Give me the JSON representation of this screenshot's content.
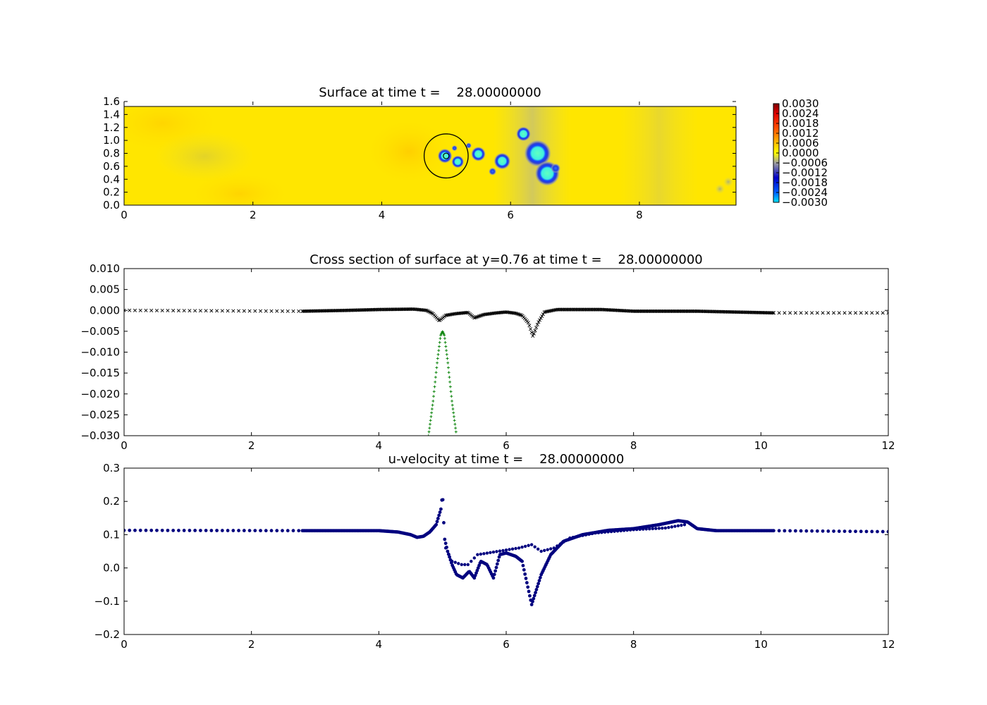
{
  "chart_data": [
    {
      "type": "heatmap",
      "title": "Surface at time t =    28.00000000",
      "xlim": [
        0,
        9.5
      ],
      "ylim": [
        0,
        1.6
      ],
      "xticks": [
        "0",
        "2",
        "4",
        "6",
        "8"
      ],
      "yticks": [
        "0.0",
        "0.2",
        "0.4",
        "0.6",
        "0.8",
        "1.0",
        "1.2",
        "1.4",
        "1.6"
      ],
      "colorbar_ticks": [
        "0.0030",
        "0.0024",
        "0.0018",
        "0.0012",
        "0.0006",
        "0.0000",
        "−0.0006",
        "−0.0012",
        "−0.0018",
        "−0.0024",
        "−0.0030"
      ],
      "colorbar_range": [
        -0.003,
        0.003
      ],
      "background_value": 0.0002,
      "circle": {
        "cx": 5.0,
        "cy": 0.76,
        "r": 0.34
      },
      "features": [
        {
          "x": 4.98,
          "y": 0.76,
          "r": 0.07,
          "v": -0.003
        },
        {
          "x": 5.18,
          "y": 0.67,
          "r": 0.06,
          "v": -0.0022
        },
        {
          "x": 5.13,
          "y": 0.88,
          "r": 0.03,
          "v": -0.0016
        },
        {
          "x": 5.35,
          "y": 0.92,
          "r": 0.03,
          "v": -0.0012
        },
        {
          "x": 5.5,
          "y": 0.79,
          "r": 0.07,
          "v": -0.0022
        },
        {
          "x": 5.72,
          "y": 0.52,
          "r": 0.04,
          "v": -0.0012
        },
        {
          "x": 5.87,
          "y": 0.68,
          "r": 0.08,
          "v": -0.0024
        },
        {
          "x": 6.2,
          "y": 1.1,
          "r": 0.07,
          "v": -0.0022
        },
        {
          "x": 6.42,
          "y": 0.8,
          "r": 0.13,
          "v": -0.0028
        },
        {
          "x": 6.57,
          "y": 0.49,
          "r": 0.12,
          "v": -0.0028
        },
        {
          "x": 6.7,
          "y": 0.57,
          "r": 0.05,
          "v": -0.0012
        },
        {
          "x": 9.25,
          "y": 0.25,
          "r": 0.05,
          "v": -0.0007
        },
        {
          "x": 9.38,
          "y": 0.36,
          "r": 0.05,
          "v": -0.0007
        }
      ]
    },
    {
      "type": "scatter",
      "title": "Cross section of surface at y=0.76 at time t =    28.00000000",
      "xlim": [
        0,
        12
      ],
      "ylim": [
        -0.03,
        0.01
      ],
      "xticks": [
        "0",
        "2",
        "4",
        "6",
        "8",
        "10",
        "12"
      ],
      "yticks": [
        "−0.030",
        "−0.025",
        "−0.020",
        "−0.015",
        "−0.010",
        "−0.005",
        "0.000",
        "0.005",
        "0.010"
      ],
      "series": [
        {
          "marker": "x",
          "color": "#000000",
          "curve": [
            [
              0,
              0.0
            ],
            [
              2.8,
              -0.0002
            ],
            [
              3.5,
              0.0
            ],
            [
              4.0,
              0.0002
            ],
            [
              4.55,
              0.0003
            ],
            [
              4.75,
              0.0
            ],
            [
              4.85,
              -0.0008
            ],
            [
              4.95,
              -0.0025
            ],
            [
              5.05,
              -0.0012
            ],
            [
              5.2,
              -0.0008
            ],
            [
              5.4,
              -0.0005
            ],
            [
              5.5,
              -0.0018
            ],
            [
              5.65,
              -0.001
            ],
            [
              5.85,
              -0.0006
            ],
            [
              6.0,
              -0.0004
            ],
            [
              6.15,
              -0.0007
            ],
            [
              6.25,
              -0.0012
            ],
            [
              6.35,
              -0.003
            ],
            [
              6.42,
              -0.0062
            ],
            [
              6.5,
              -0.003
            ],
            [
              6.6,
              -0.0004
            ],
            [
              6.8,
              0.0002
            ],
            [
              7.5,
              0.0002
            ],
            [
              8.0,
              -0.0002
            ],
            [
              9.0,
              -0.0002
            ],
            [
              10.2,
              -0.0006
            ],
            [
              12,
              -0.0006
            ]
          ]
        },
        {
          "marker": "+",
          "color": "#007f00",
          "curve": [
            [
              4.78,
              -0.03
            ],
            [
              4.85,
              -0.022
            ],
            [
              4.92,
              -0.012
            ],
            [
              4.97,
              -0.006
            ],
            [
              5.0,
              -0.005
            ],
            [
              5.03,
              -0.006
            ],
            [
              5.08,
              -0.012
            ],
            [
              5.15,
              -0.022
            ],
            [
              5.22,
              -0.03
            ]
          ]
        }
      ]
    },
    {
      "type": "scatter",
      "title": "u-velocity at time t =    28.00000000",
      "xlim": [
        0,
        12
      ],
      "ylim": [
        -0.2,
        0.3
      ],
      "xticks": [
        "0",
        "2",
        "4",
        "6",
        "8",
        "10",
        "12"
      ],
      "yticks": [
        "−0.2",
        "−0.1",
        "0.0",
        "0.1",
        "0.2",
        "0.3"
      ],
      "series": [
        {
          "marker": "o",
          "color": "#00007f",
          "curve": [
            [
              0,
              0.113
            ],
            [
              2.8,
              0.112
            ],
            [
              4.0,
              0.112
            ],
            [
              4.3,
              0.108
            ],
            [
              4.5,
              0.1
            ],
            [
              4.6,
              0.092
            ],
            [
              4.7,
              0.095
            ],
            [
              4.8,
              0.108
            ],
            [
              4.9,
              0.13
            ],
            [
              4.98,
              0.18
            ],
            [
              5.0,
              0.228
            ],
            [
              5.03,
              0.09
            ],
            [
              5.08,
              0.05
            ],
            [
              5.15,
              0.01
            ],
            [
              5.22,
              -0.02
            ],
            [
              5.32,
              -0.03
            ],
            [
              5.42,
              -0.01
            ],
            [
              5.5,
              -0.03
            ],
            [
              5.6,
              0.02
            ],
            [
              5.7,
              0.01
            ],
            [
              5.8,
              -0.03
            ],
            [
              5.9,
              0.04
            ],
            [
              6.0,
              0.045
            ],
            [
              6.15,
              0.035
            ],
            [
              6.25,
              0.02
            ],
            [
              6.32,
              -0.04
            ],
            [
              6.4,
              -0.11
            ],
            [
              6.45,
              -0.08
            ],
            [
              6.55,
              -0.02
            ],
            [
              6.7,
              0.04
            ],
            [
              6.9,
              0.08
            ],
            [
              7.2,
              0.1
            ],
            [
              7.6,
              0.113
            ],
            [
              8.0,
              0.118
            ],
            [
              8.4,
              0.13
            ],
            [
              8.7,
              0.142
            ],
            [
              8.85,
              0.138
            ],
            [
              9.0,
              0.118
            ],
            [
              9.3,
              0.112
            ],
            [
              10.2,
              0.112
            ],
            [
              12,
              0.109
            ]
          ]
        },
        {
          "marker": "o",
          "color": "#00007f",
          "curve": [
            [
              5.05,
              0.06
            ],
            [
              5.15,
              0.02
            ],
            [
              5.3,
              0.01
            ],
            [
              5.4,
              0.01
            ],
            [
              5.55,
              0.04
            ],
            [
              6.2,
              0.06
            ],
            [
              6.4,
              0.07
            ],
            [
              6.55,
              0.05
            ],
            [
              6.75,
              0.06
            ],
            [
              7.0,
              0.09
            ],
            [
              7.4,
              0.105
            ],
            [
              8.0,
              0.115
            ],
            [
              8.5,
              0.12
            ],
            [
              8.8,
              0.13
            ]
          ]
        }
      ]
    }
  ]
}
